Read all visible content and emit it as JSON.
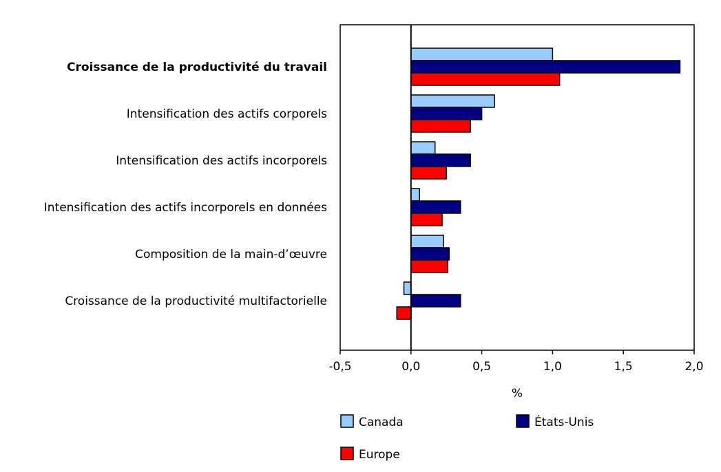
{
  "chart_data": {
    "type": "bar",
    "orientation": "horizontal",
    "categories": [
      "Croissance de la productivité du travail",
      "Intensification des actifs corporels",
      "Intensification des actifs incorporels",
      "Intensification des actifs incorporels en données",
      "Composition de la main-d’œuvre",
      "Croissance de la productivité multifactorielle"
    ],
    "bold_category_index": 0,
    "series": [
      {
        "name": "Canada",
        "color": "#99ccff",
        "values": [
          1.0,
          0.59,
          0.17,
          0.06,
          0.23,
          -0.05
        ]
      },
      {
        "name": "États-Unis",
        "color": "#000080",
        "values": [
          1.9,
          0.5,
          0.42,
          0.35,
          0.27,
          0.35
        ]
      },
      {
        "name": "Europe",
        "color": "#ff0000",
        "values": [
          1.05,
          0.42,
          0.25,
          0.22,
          0.26,
          -0.1
        ]
      }
    ],
    "xlabel": "%",
    "xlim": [
      -0.5,
      2.0
    ],
    "xticks": [
      -0.5,
      0.0,
      0.5,
      1.0,
      1.5,
      2.0
    ],
    "xtick_labels": [
      "-0,5",
      "0,0",
      "0,5",
      "1,0",
      "1,5",
      "2,0"
    ],
    "grid": false,
    "legend_position": "bottom"
  }
}
